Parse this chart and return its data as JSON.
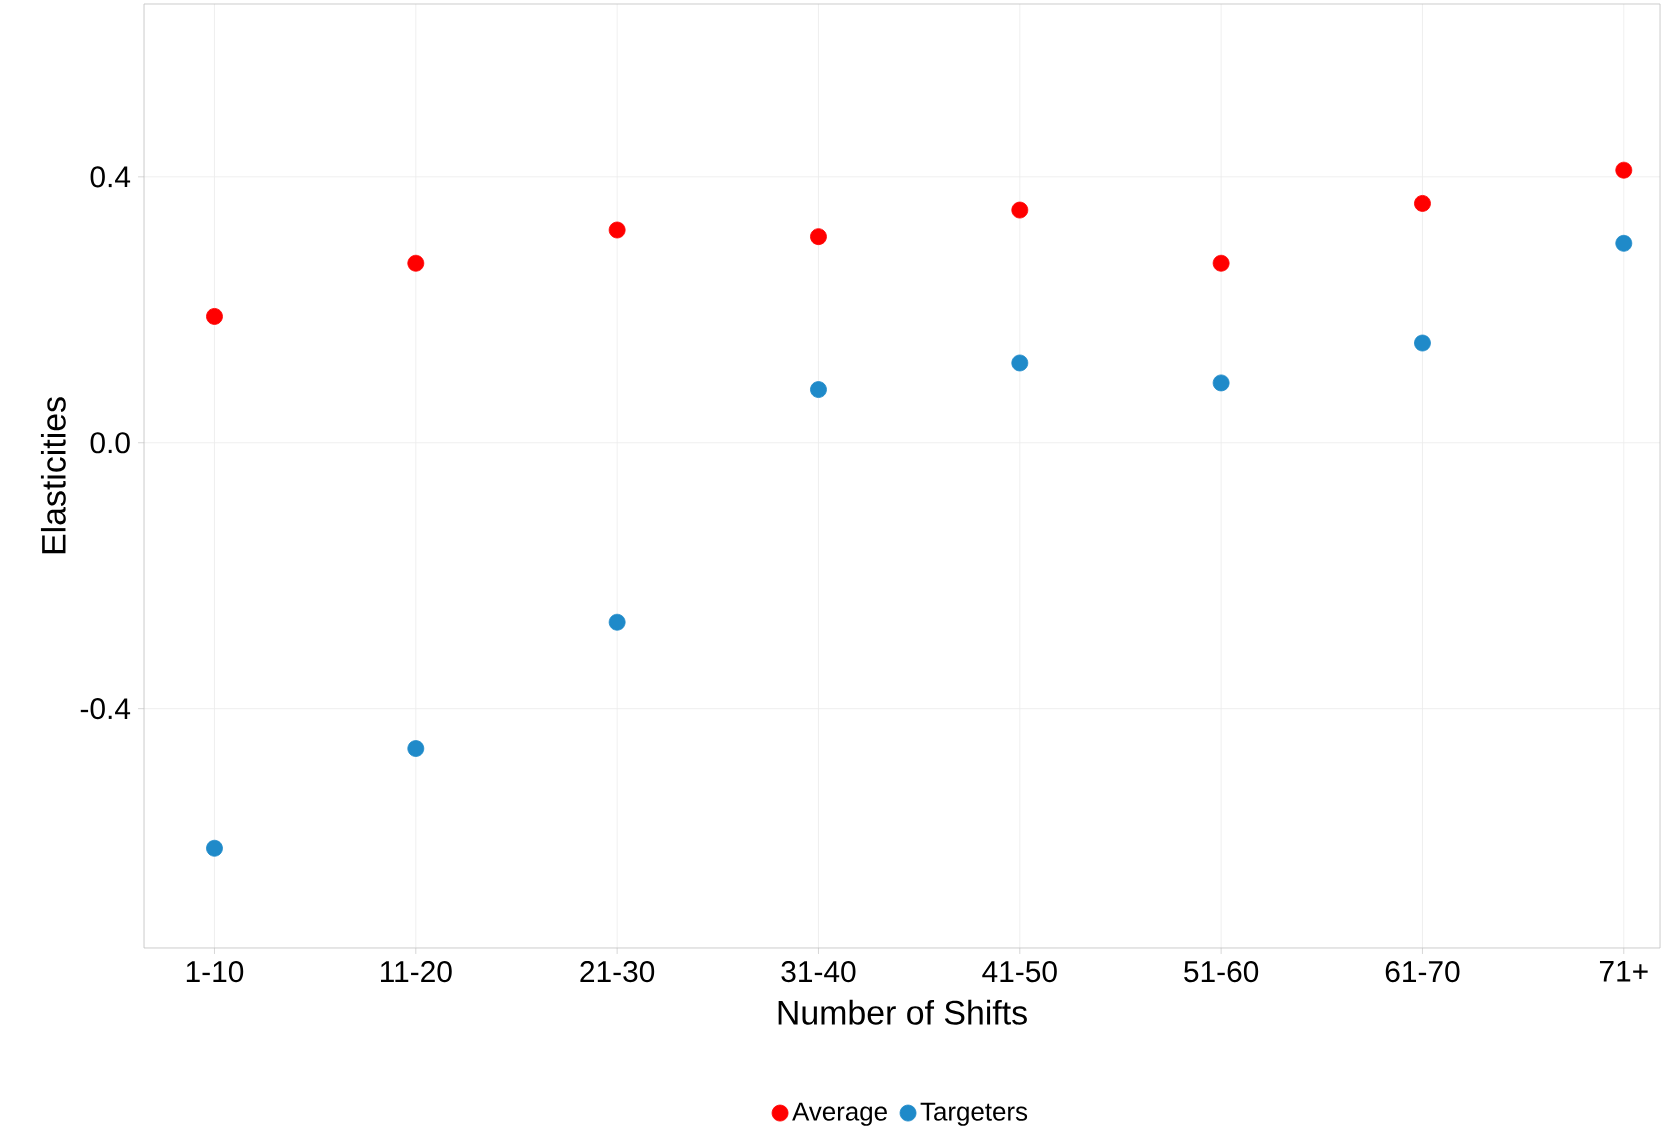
{
  "chart_data": {
    "type": "scatter",
    "xlabel": "Number of Shifts",
    "ylabel": "Elasticities",
    "categories": [
      "1-10",
      "11-20",
      "21-30",
      "31-40",
      "41-50",
      "51-60",
      "61-70",
      "71+"
    ],
    "series": [
      {
        "name": "Average",
        "color": "#ff0000",
        "values": [
          0.19,
          0.27,
          0.32,
          0.31,
          0.35,
          0.27,
          0.36,
          0.41
        ]
      },
      {
        "name": "Targeters",
        "color": "#1f8ac9",
        "values": [
          -0.61,
          -0.46,
          -0.27,
          0.08,
          0.12,
          0.09,
          0.15,
          0.3
        ]
      }
    ],
    "ylim": [
      -0.76,
      0.66
    ],
    "yticks": [
      {
        "value": -0.4,
        "label": "-0.4"
      },
      {
        "value": 0,
        "label": "0.0"
      },
      0.4
    ],
    "grid": true,
    "legend": "bottom",
    "marker": "circle"
  }
}
